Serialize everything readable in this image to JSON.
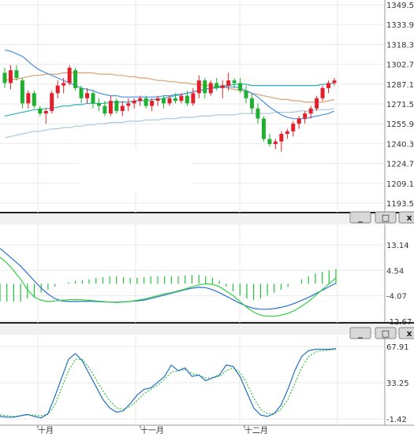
{
  "chart_data": [
    {
      "panel": "price",
      "type": "candlestick",
      "yticks": [
        "1349.54",
        "1333.94",
        "1318.34",
        "1302.74",
        "1287.14",
        "1271.55",
        "1255.95",
        "1240.35",
        "1224.75",
        "1209.15",
        "1193.55"
      ],
      "ylim": [
        1193.55,
        1349.54
      ],
      "candles": [
        [
          1296,
          1300,
          1284,
          1288
        ],
        [
          1288,
          1302,
          1283,
          1298
        ],
        [
          1298,
          1302,
          1290,
          1292
        ],
        [
          1290,
          1292,
          1268,
          1272
        ],
        [
          1272,
          1282,
          1268,
          1280
        ],
        [
          1280,
          1282,
          1268,
          1270
        ],
        [
          1268,
          1270,
          1262,
          1264
        ],
        [
          1264,
          1268,
          1256,
          1266
        ],
        [
          1266,
          1282,
          1264,
          1280
        ],
        [
          1280,
          1290,
          1276,
          1286
        ],
        [
          1286,
          1292,
          1280,
          1288
        ],
        [
          1288,
          1302,
          1286,
          1300
        ],
        [
          1298,
          1300,
          1282,
          1284
        ],
        [
          1284,
          1286,
          1272,
          1276
        ],
        [
          1276,
          1284,
          1272,
          1280
        ],
        [
          1280,
          1282,
          1268,
          1272
        ],
        [
          1272,
          1276,
          1266,
          1270
        ],
        [
          1270,
          1274,
          1262,
          1264
        ],
        [
          1264,
          1278,
          1262,
          1274
        ],
        [
          1274,
          1276,
          1264,
          1266
        ],
        [
          1266,
          1274,
          1262,
          1270
        ],
        [
          1270,
          1276,
          1266,
          1272
        ],
        [
          1272,
          1276,
          1268,
          1274
        ],
        [
          1274,
          1278,
          1270,
          1276
        ],
        [
          1276,
          1278,
          1268,
          1270
        ],
        [
          1270,
          1276,
          1266,
          1274
        ],
        [
          1274,
          1278,
          1270,
          1276
        ],
        [
          1276,
          1278,
          1268,
          1272
        ],
        [
          1272,
          1278,
          1270,
          1276
        ],
        [
          1276,
          1280,
          1272,
          1274
        ],
        [
          1274,
          1280,
          1272,
          1278
        ],
        [
          1278,
          1282,
          1270,
          1272
        ],
        [
          1272,
          1284,
          1270,
          1280
        ],
        [
          1280,
          1294,
          1276,
          1290
        ],
        [
          1290,
          1292,
          1276,
          1280
        ],
        [
          1280,
          1290,
          1278,
          1288
        ],
        [
          1288,
          1292,
          1282,
          1284
        ],
        [
          1284,
          1290,
          1276,
          1286
        ],
        [
          1286,
          1296,
          1282,
          1290
        ],
        [
          1290,
          1292,
          1284,
          1288
        ],
        [
          1288,
          1292,
          1280,
          1282
        ],
        [
          1282,
          1286,
          1272,
          1276
        ],
        [
          1276,
          1280,
          1264,
          1268
        ],
        [
          1268,
          1272,
          1256,
          1260
        ],
        [
          1260,
          1262,
          1242,
          1244
        ],
        [
          1244,
          1248,
          1238,
          1240
        ],
        [
          1240,
          1244,
          1236,
          1242
        ],
        [
          1242,
          1250,
          1234,
          1248
        ],
        [
          1248,
          1252,
          1244,
          1250
        ],
        [
          1250,
          1258,
          1246,
          1256
        ],
        [
          1256,
          1262,
          1252,
          1260
        ],
        [
          1260,
          1266,
          1256,
          1264
        ],
        [
          1264,
          1270,
          1260,
          1268
        ],
        [
          1268,
          1278,
          1266,
          1276
        ],
        [
          1276,
          1286,
          1274,
          1284
        ],
        [
          1284,
          1290,
          1280,
          1288
        ],
        [
          1288,
          1292,
          1286,
          1290
        ]
      ],
      "ma_cyan": [
        1262,
        1263,
        1264,
        1265,
        1266,
        1267,
        1267,
        1268,
        1268,
        1269,
        1270,
        1270,
        1271,
        1271,
        1272,
        1272,
        1272,
        1272,
        1273,
        1273,
        1273,
        1273,
        1274,
        1274,
        1274,
        1275,
        1275,
        1276,
        1277,
        1278,
        1279,
        1280,
        1281,
        1282,
        1283,
        1284,
        1285,
        1286,
        1286,
        1287,
        1287,
        1287,
        1286,
        1286,
        1286,
        1286,
        1286,
        1286,
        1286,
        1286,
        1286,
        1286,
        1286,
        1286,
        1287,
        1287,
        1288
      ],
      "ma_blue": [
        1314,
        1313,
        1311,
        1309,
        1305,
        1301,
        1298,
        1296,
        1294,
        1292,
        1290,
        1288,
        1286,
        1284,
        1283,
        1282,
        1280,
        1279,
        1278,
        1278,
        1277,
        1277,
        1277,
        1277,
        1277,
        1277,
        1277,
        1278,
        1278,
        1279,
        1279,
        1280,
        1281,
        1282,
        1283,
        1284,
        1284,
        1285,
        1285,
        1285,
        1284,
        1282,
        1280,
        1277,
        1273,
        1269,
        1266,
        1263,
        1261,
        1260,
        1260,
        1260,
        1261,
        1262,
        1263,
        1264,
        1266
      ],
      "ma_orange": [
        1290,
        1291,
        1291,
        1292,
        1293,
        1294,
        1294,
        1295,
        1295,
        1295,
        1296,
        1296,
        1296,
        1296,
        1296,
        1296,
        1295,
        1295,
        1295,
        1294,
        1294,
        1293,
        1293,
        1292,
        1292,
        1291,
        1290,
        1290,
        1289,
        1289,
        1288,
        1288,
        1287,
        1287,
        1286,
        1286,
        1285,
        1285,
        1284,
        1283,
        1282,
        1281,
        1280,
        1279,
        1278,
        1277,
        1276,
        1275,
        1275,
        1274,
        1274,
        1273,
        1273,
        1273,
        1273,
        1274,
        1275
      ],
      "ma_lightblue": [
        1245,
        1246,
        1247,
        1248,
        1249,
        1250,
        1250,
        1251,
        1252,
        1252,
        1253,
        1253,
        1254,
        1254,
        1255,
        1255,
        1256,
        1256,
        1257,
        1257,
        1257,
        1258,
        1258,
        1258,
        1259,
        1259,
        1259,
        1260,
        1260,
        1260,
        1261,
        1261,
        1261,
        1262,
        1262,
        1262,
        1263,
        1263,
        1263,
        1263,
        1264,
        1264,
        1264,
        1264,
        1264,
        1264,
        1265,
        1265,
        1265,
        1265,
        1266,
        1266,
        1266,
        1267,
        1267,
        1267,
        1268
      ]
    },
    {
      "panel": "macd",
      "type": "line+bar",
      "yticks": [
        "13.14",
        "4.54",
        "-4.07",
        "-12.67"
      ],
      "ylim": [
        -12.67,
        13.14
      ],
      "line1": [
        9,
        7,
        4.5,
        1.5,
        -2,
        -4.5,
        -5.6,
        -6,
        -5.8,
        -5.6,
        -5.4,
        -5.3,
        -5.4,
        -5.6,
        -5.8,
        -6,
        -6.2,
        -6.3,
        -6.2,
        -6,
        -5.6,
        -5.2,
        -4.6,
        -4,
        -3.4,
        -3,
        -2.4,
        -1.8,
        -1,
        -0.4,
        0,
        -0.2,
        -1,
        -2.5,
        -4,
        -6,
        -8,
        -9.6,
        -10.6,
        -11,
        -11,
        -10.6,
        -10,
        -9,
        -7.6,
        -6,
        -4,
        -2,
        0,
        2
      ],
      "line2": [
        12,
        10,
        8,
        6,
        3.5,
        1,
        -1.5,
        -3.5,
        -5,
        -5.8,
        -6,
        -6,
        -5.9,
        -5.9,
        -6,
        -6.1,
        -6.2,
        -6.2,
        -6.1,
        -6,
        -5.8,
        -5.5,
        -5,
        -4.4,
        -3.8,
        -3.2,
        -2.6,
        -2,
        -1.5,
        -1.2,
        -1.3,
        -2,
        -3,
        -4.2,
        -5.4,
        -6.6,
        -7.6,
        -8.3,
        -8.6,
        -8.6,
        -8.4,
        -8,
        -7.4,
        -6.6,
        -5.6,
        -4.6,
        -3.4,
        -2.2,
        -1,
        0.2
      ],
      "hist": [
        -6,
        -6,
        -6,
        -6,
        -5,
        -4.5,
        -3,
        -2,
        -1,
        0,
        0.5,
        1,
        1.2,
        1.5,
        2,
        2.2,
        2.5,
        2.5,
        2.2,
        2,
        2,
        2.2,
        2.5,
        2.5,
        2.5,
        2.5,
        2.5,
        2.8,
        3,
        3,
        2.5,
        2,
        1,
        -1,
        -2.5,
        -4,
        -5,
        -5.5,
        -5,
        -4,
        -3,
        -2,
        -1,
        0,
        1.5,
        2.5,
        3.5,
        4,
        4.5,
        5
      ]
    },
    {
      "panel": "stoch",
      "type": "line",
      "yticks": [
        "67.91",
        "33.25",
        "-1.42"
      ],
      "ylim": [
        -1.42,
        100
      ],
      "k": [
        2,
        1,
        1,
        3,
        5,
        2,
        0,
        6,
        30,
        56,
        82,
        90,
        80,
        62,
        44,
        26,
        14,
        8,
        10,
        20,
        32,
        40,
        42,
        50,
        58,
        74,
        66,
        70,
        58,
        60,
        52,
        56,
        60,
        74,
        72,
        58,
        36,
        14,
        4,
        2,
        6,
        18,
        40,
        66,
        86,
        94,
        96,
        96,
        96,
        97
      ],
      "d": [
        4,
        3,
        2,
        3,
        4,
        4,
        3,
        5,
        18,
        42,
        66,
        82,
        82,
        70,
        54,
        38,
        24,
        14,
        12,
        16,
        24,
        34,
        40,
        46,
        54,
        64,
        66,
        68,
        62,
        60,
        56,
        56,
        58,
        66,
        70,
        64,
        48,
        28,
        12,
        6,
        6,
        12,
        26,
        48,
        70,
        86,
        92,
        94,
        95,
        96
      ]
    }
  ],
  "xaxis": {
    "labels": [
      "十月",
      "十一月",
      "十二月"
    ]
  },
  "panel_buttons": {
    "minimize": "_",
    "restore": "□",
    "close": "x"
  }
}
